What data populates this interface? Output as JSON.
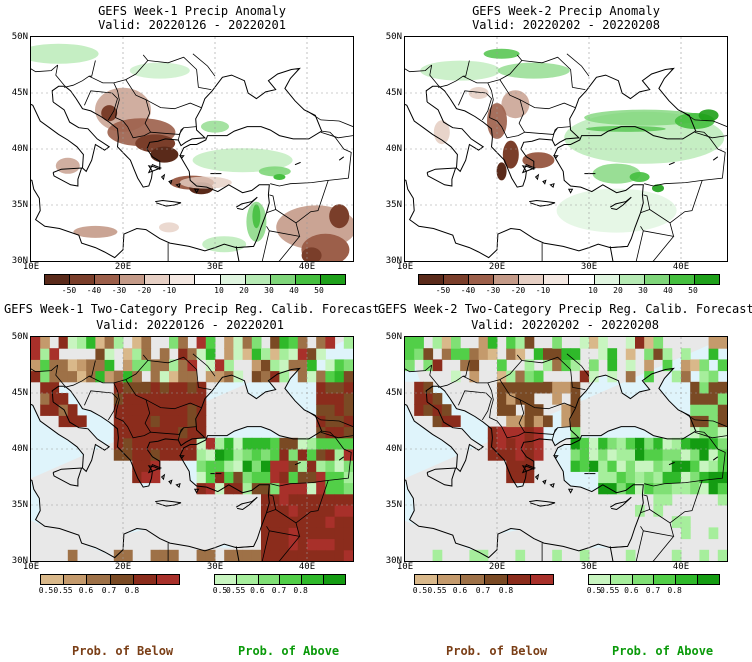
{
  "panels": [
    {
      "title": "GEFS Week-1 Precip Anomaly",
      "valid": "Valid: 20220126 - 20220201"
    },
    {
      "title": "GEFS Week-2 Precip Anomaly",
      "valid": "Valid: 20220202 - 20220208"
    },
    {
      "title": "GEFS Week-1 Two-Category Precip Reg. Calib. Forecast",
      "valid": "Valid: 20220126 - 20220201"
    },
    {
      "title": "GEFS Week-2 Two-Category Precip Reg. Calib. Forecast",
      "valid": "Valid: 20220202 - 20220208"
    }
  ],
  "axes": {
    "lat_labels": [
      "50N",
      "45N",
      "40N",
      "35N",
      "30N"
    ],
    "lon_labels": [
      "10E",
      "20E",
      "30E",
      "40E"
    ]
  },
  "anomaly_colorbar": {
    "ticks": [
      "-50",
      "-40",
      "-30",
      "-20",
      "-10",
      "10",
      "20",
      "30",
      "40",
      "50"
    ],
    "colors": [
      "#5a2a1a",
      "#7a3e2a",
      "#9c5f4a",
      "#c49a88",
      "#e6cfc4",
      "#f4e8e2",
      "#ffffff",
      "#e0f5e0",
      "#b6eab4",
      "#7fd67a",
      "#45bf3f",
      "#1ea01a"
    ]
  },
  "prob_below_colorbar": {
    "ticks": [
      "0.5",
      "0.55",
      "0.6",
      "0.7",
      "0.8"
    ],
    "colors": [
      "#d9b88a",
      "#c49a6c",
      "#9e7147",
      "#7a4a24",
      "#8b2c1c",
      "#a8302a"
    ],
    "label": "Prob. of Below",
    "label_color": "#7a3e16"
  },
  "prob_above_colorbar": {
    "ticks": [
      "0.5",
      "0.55",
      "0.6",
      "0.7",
      "0.8"
    ],
    "colors": [
      "#c8f5c0",
      "#a6ee9c",
      "#80e075",
      "#52cf48",
      "#2fb92a",
      "#149c12"
    ],
    "label": "Prob. of Above",
    "label_color": "#0a9a0a"
  },
  "colors": {
    "sea": "#dff4fb",
    "land_na": "#e8e8e8",
    "border": "#000000"
  }
}
